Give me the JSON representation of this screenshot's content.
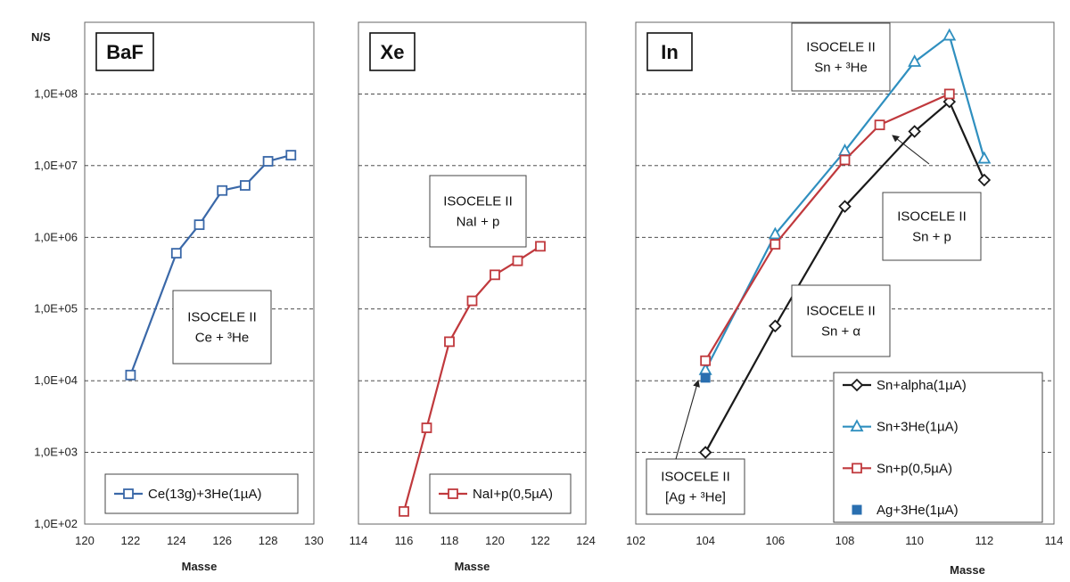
{
  "y_axis_title": "N/S",
  "y_ticks": [
    {
      "value": 100,
      "label": "1,0E+02"
    },
    {
      "value": 1000,
      "label": "1,0E+03"
    },
    {
      "value": 10000,
      "label": "1,0E+04"
    },
    {
      "value": 100000,
      "label": "1,0E+05"
    },
    {
      "value": 1000000,
      "label": "1,0E+06"
    },
    {
      "value": 10000000,
      "label": "1,0E+07"
    },
    {
      "value": 100000000,
      "label": "1,0E+08"
    }
  ],
  "chart_data": [
    {
      "type": "line",
      "panel_label": "BaF",
      "xlabel": "Masse",
      "ylabel": "N/S",
      "y_scale": "log",
      "xlim": [
        120,
        130
      ],
      "ylim": [
        100,
        1000000000
      ],
      "x_ticks": [
        120,
        122,
        124,
        126,
        128,
        130
      ],
      "grid": "horizontal dashed",
      "annotations": [
        {
          "lines": [
            "ISOCELE II",
            "Ce + ³He"
          ]
        }
      ],
      "legend_position": "bottom",
      "series": [
        {
          "name": "Ce(13g)+3He(1µA)",
          "color": "#3a68a8",
          "marker": "square-open",
          "x": [
            122,
            124,
            125,
            126,
            127,
            128,
            129
          ],
          "y": [
            12000,
            600000,
            1500000,
            4500000,
            5300000,
            11500000,
            14000000
          ]
        }
      ]
    },
    {
      "type": "line",
      "panel_label": "Xe",
      "xlabel": "Masse",
      "ylabel": "N/S",
      "y_scale": "log",
      "xlim": [
        114,
        124
      ],
      "ylim": [
        100,
        1000000000
      ],
      "x_ticks": [
        114,
        116,
        118,
        120,
        122,
        124
      ],
      "grid": "horizontal dashed",
      "annotations": [
        {
          "lines": [
            "ISOCELE II",
            "NaI + p"
          ]
        }
      ],
      "legend_position": "bottom",
      "series": [
        {
          "name": "NaI+p(0,5µA)",
          "color": "#c0393d",
          "marker": "square-open",
          "x": [
            116,
            117,
            118,
            119,
            120,
            121,
            122
          ],
          "y": [
            150,
            2200,
            35000,
            130000,
            300000,
            470000,
            750000
          ]
        }
      ]
    },
    {
      "type": "line",
      "panel_label": "In",
      "xlabel": "Masse",
      "ylabel": "N/S",
      "y_scale": "log",
      "xlim": [
        102,
        114
      ],
      "ylim": [
        100,
        1000000000
      ],
      "x_ticks": [
        102,
        104,
        106,
        108,
        110,
        112,
        114
      ],
      "grid": "horizontal dashed",
      "annotations": [
        {
          "lines": [
            "ISOCELE II",
            "Sn + ³He"
          ]
        },
        {
          "lines": [
            "ISOCELE II",
            "Sn + p"
          ]
        },
        {
          "lines": [
            "ISOCELE II",
            "Sn + α"
          ]
        },
        {
          "lines": [
            "ISOCELE II",
            "[Ag + ³He]"
          ]
        }
      ],
      "legend_position": "bottom-right",
      "series": [
        {
          "name": "Sn+alpha(1µA)",
          "color": "#1a1a1a",
          "marker": "diamond-open",
          "x": [
            104,
            106,
            108,
            110,
            111,
            112
          ],
          "y": [
            1000,
            58000,
            2700000,
            30000000,
            78000000,
            6300000
          ]
        },
        {
          "name": "Sn+3He(1µA)",
          "color": "#2f8fbf",
          "marker": "triangle-open",
          "x": [
            104,
            106,
            108,
            110,
            111,
            112
          ],
          "y": [
            14000,
            1100000,
            16000000,
            280000000,
            650000000,
            12500000
          ]
        },
        {
          "name": "Sn+p(0,5µA)",
          "color": "#c0393d",
          "marker": "square-open",
          "x": [
            104,
            106,
            108,
            109,
            111
          ],
          "y": [
            19000,
            800000,
            12000000,
            37000000,
            100000000
          ]
        },
        {
          "name": "Ag+3He(1µA)",
          "color": "#2a6fb0",
          "marker": "square-filled",
          "x": [
            104
          ],
          "y": [
            11000
          ]
        }
      ]
    }
  ]
}
